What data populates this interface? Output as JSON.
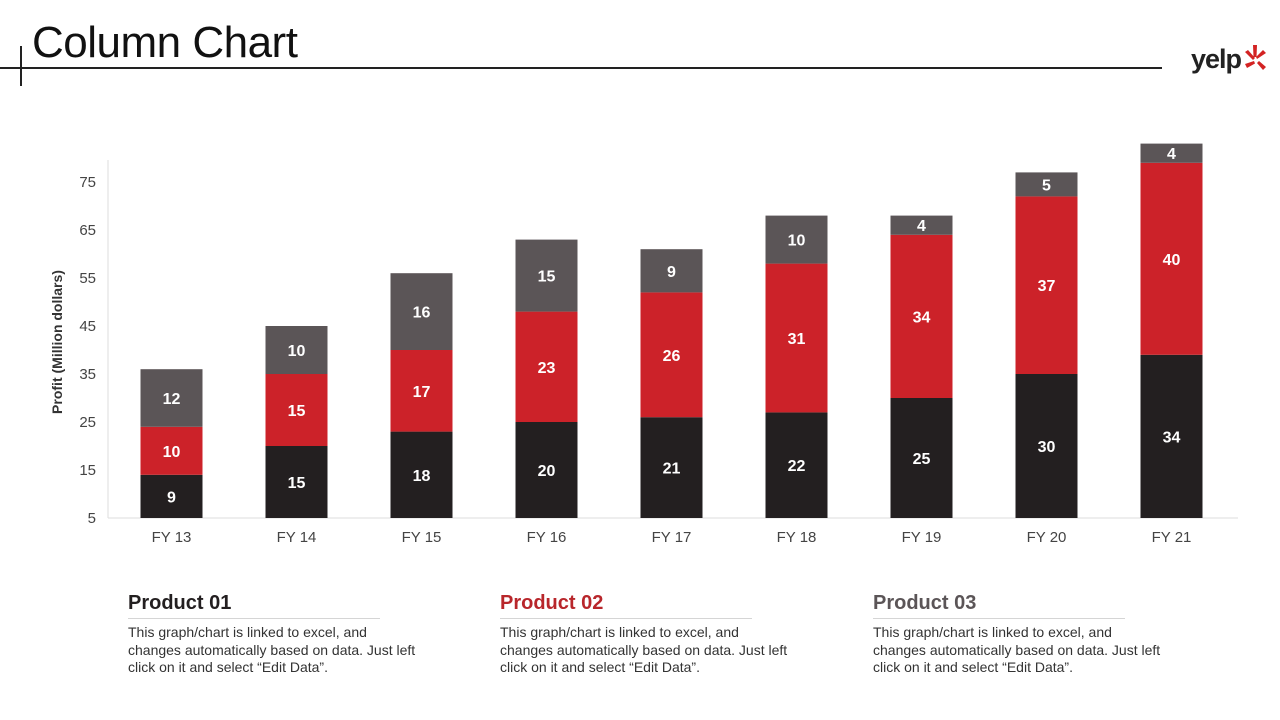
{
  "header": {
    "title": "Column Chart",
    "logo_text": "yelp"
  },
  "colors": {
    "product_01": "#231f20",
    "product_02": "#cc2229",
    "product_03": "#5b5557",
    "axis": "#dddddd"
  },
  "chart_data": {
    "type": "bar",
    "stacked": true,
    "categories": [
      "FY 13",
      "FY 14",
      "FY 15",
      "FY 16",
      "FY 17",
      "FY 18",
      "FY 19",
      "FY 20",
      "FY 21"
    ],
    "series": [
      {
        "name": "Product 01",
        "values": [
          9,
          15,
          18,
          20,
          21,
          22,
          25,
          30,
          34
        ]
      },
      {
        "name": "Product 02",
        "values": [
          10,
          15,
          17,
          23,
          26,
          31,
          34,
          37,
          40
        ]
      },
      {
        "name": "Product 03",
        "values": [
          12,
          10,
          16,
          15,
          9,
          10,
          4,
          5,
          4
        ]
      }
    ],
    "ylabel": "Profit  (Million dollars)",
    "yticks": [
      5,
      15,
      25,
      35,
      45,
      55,
      65,
      75
    ],
    "ylim": [
      0,
      75
    ],
    "data_labels": true,
    "grid": false,
    "legend": "below"
  },
  "products": [
    {
      "title": "Product 01",
      "description": "This graph/chart is linked to excel, and changes automatically based on data. Just left click on it and select “Edit Data”."
    },
    {
      "title": "Product 02",
      "description": "This graph/chart is linked to excel, and changes automatically based on data. Just left click on it and select “Edit Data”."
    },
    {
      "title": "Product 03",
      "description": "This graph/chart is linked to excel, and changes automatically based on data. Just left click on it and select “Edit Data”."
    }
  ]
}
